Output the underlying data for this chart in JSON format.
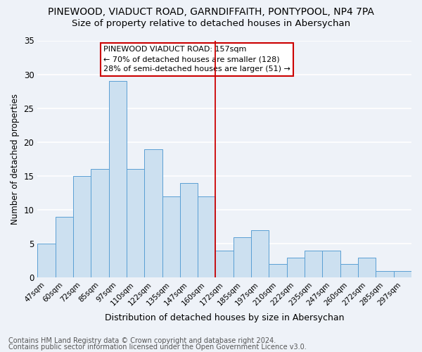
{
  "title": "PINEWOOD, VIADUCT ROAD, GARNDIFFAITH, PONTYPOOL, NP4 7PA",
  "subtitle": "Size of property relative to detached houses in Abersychan",
  "xlabel": "Distribution of detached houses by size in Abersychan",
  "ylabel": "Number of detached properties",
  "footnote1": "Contains HM Land Registry data © Crown copyright and database right 2024.",
  "footnote2": "Contains public sector information licensed under the Open Government Licence v3.0.",
  "annotation_title": "PINEWOOD VIADUCT ROAD: 157sqm",
  "annotation_line1": "← 70% of detached houses are smaller (128)",
  "annotation_line2": "28% of semi-detached houses are larger (51) →",
  "bar_color": "#cce0f0",
  "bar_edge_color": "#5a9fd4",
  "vline_color": "#cc0000",
  "categories": [
    "47sqm",
    "60sqm",
    "72sqm",
    "85sqm",
    "97sqm",
    "110sqm",
    "122sqm",
    "135sqm",
    "147sqm",
    "160sqm",
    "172sqm",
    "185sqm",
    "197sqm",
    "210sqm",
    "222sqm",
    "235sqm",
    "247sqm",
    "260sqm",
    "272sqm",
    "285sqm",
    "297sqm"
  ],
  "values": [
    5,
    9,
    15,
    16,
    29,
    16,
    19,
    12,
    14,
    12,
    4,
    6,
    7,
    2,
    3,
    4,
    4,
    2,
    3,
    1,
    1
  ],
  "ylim": [
    0,
    35
  ],
  "yticks": [
    0,
    5,
    10,
    15,
    20,
    25,
    30,
    35
  ],
  "vline_x": 9.5,
  "bg_color": "#eef2f8",
  "grid_color": "#ffffff",
  "title_fontsize": 10,
  "subtitle_fontsize": 9.5,
  "annotation_fontsize": 8,
  "footnote_fontsize": 7,
  "ylabel_fontsize": 8.5,
  "xlabel_fontsize": 9,
  "tick_fontsize": 7.5,
  "ytick_fontsize": 8.5
}
